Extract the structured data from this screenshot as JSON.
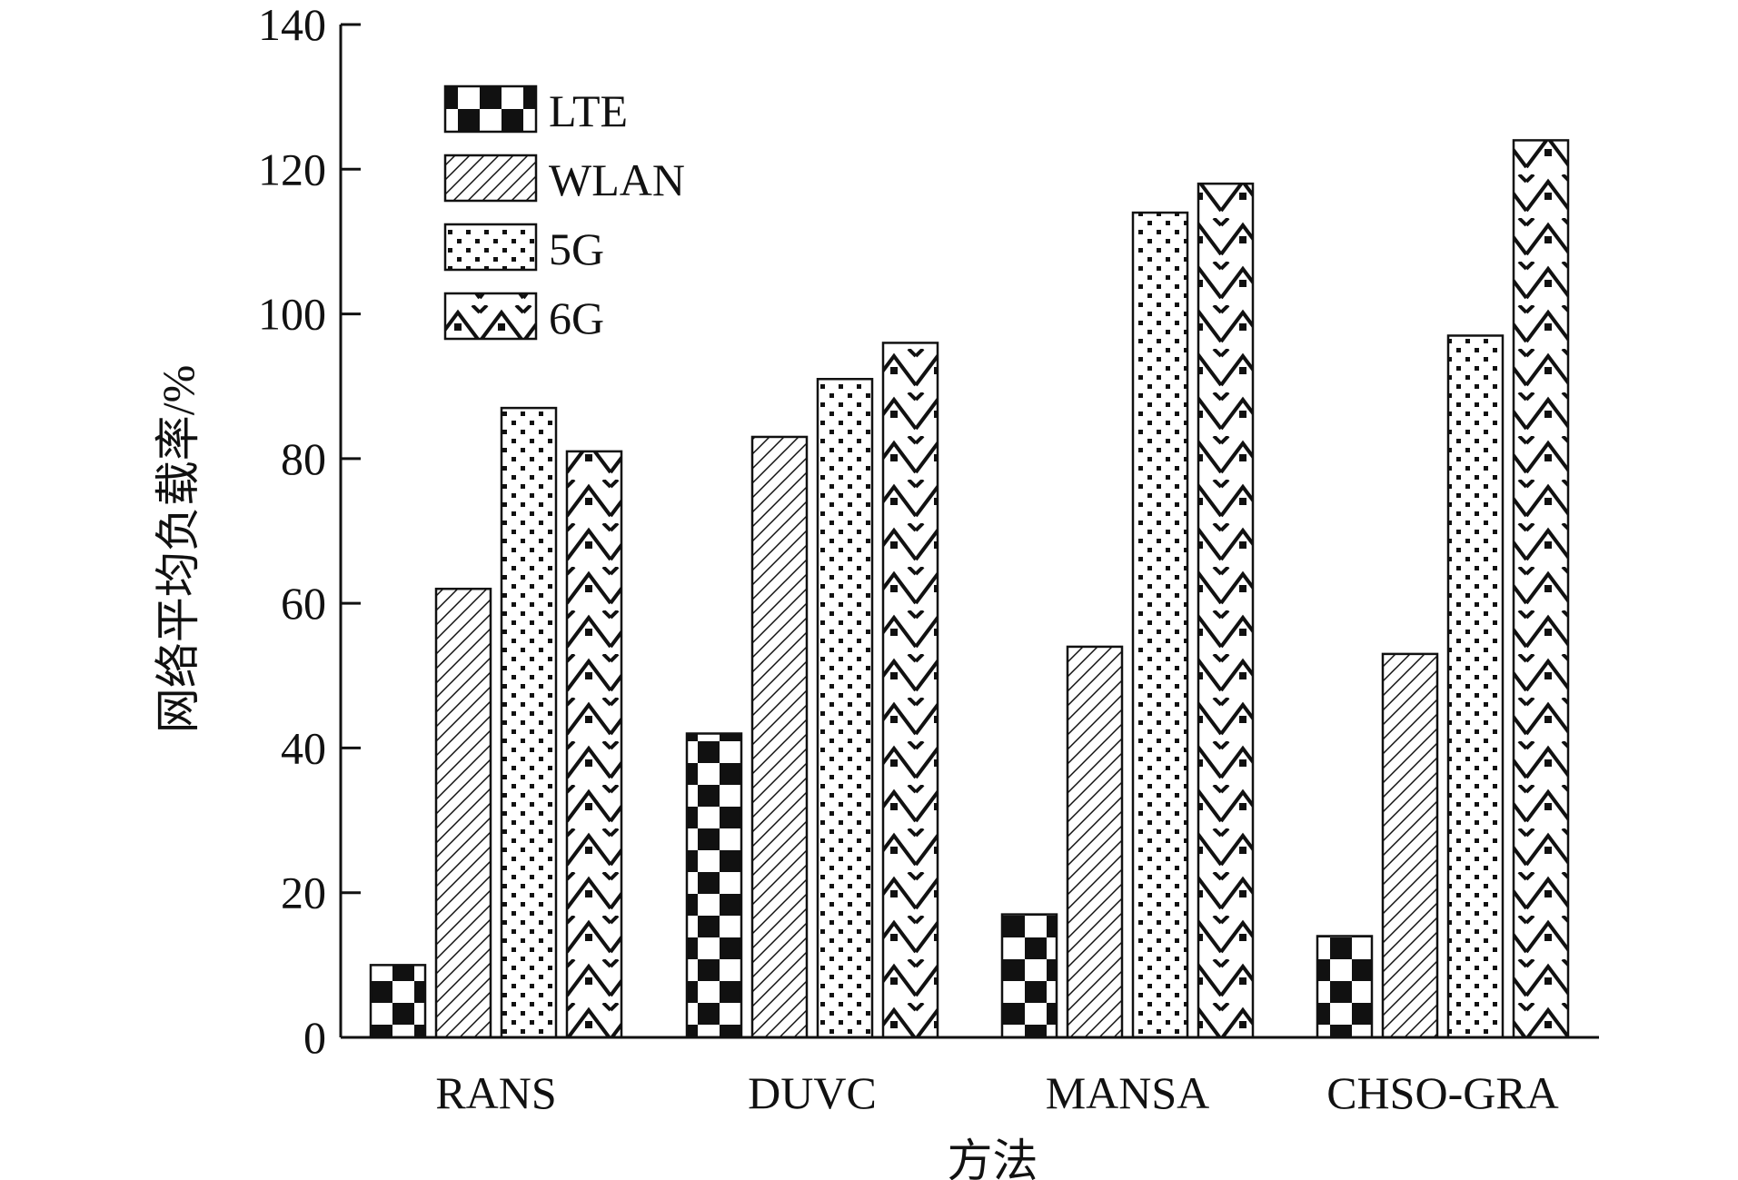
{
  "chart_data": {
    "type": "bar",
    "title": "",
    "xlabel": "方法",
    "ylabel": "网络平均负载率/%",
    "categories": [
      "RANS",
      "DUVC",
      "MANSA",
      "CHSO-GRA"
    ],
    "series": [
      {
        "name": "LTE",
        "pattern": "checker",
        "values": [
          10,
          42,
          17,
          14
        ]
      },
      {
        "name": "WLAN",
        "pattern": "hatch",
        "values": [
          62,
          83,
          54,
          53
        ]
      },
      {
        "name": "5G",
        "pattern": "dots",
        "values": [
          87,
          91,
          114,
          97
        ]
      },
      {
        "name": "6G",
        "pattern": "zigzag",
        "values": [
          81,
          96,
          118,
          124
        ]
      }
    ],
    "ylim": [
      0,
      140
    ],
    "yticks": [
      0,
      20,
      40,
      60,
      80,
      100,
      120,
      140
    ],
    "grid": false,
    "legend_position": "top-left",
    "colors": {
      "stroke": "#111111",
      "fill": "#ffffff"
    }
  }
}
